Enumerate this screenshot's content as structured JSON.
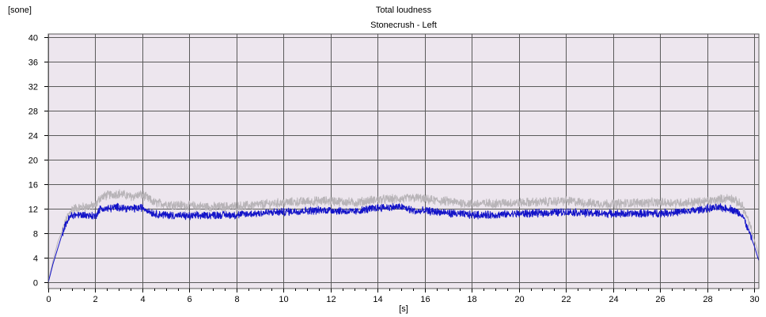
{
  "chart_data": {
    "type": "line",
    "title": "Total loudness",
    "subtitle": "Stonecrush - Left",
    "xlabel": "[s]",
    "ylabel": "[sone]",
    "xlim": [
      0,
      30.2
    ],
    "ylim": [
      -1,
      40.5
    ],
    "xticks": [
      0,
      2,
      4,
      6,
      8,
      10,
      12,
      14,
      16,
      18,
      20,
      22,
      24,
      26,
      28,
      30
    ],
    "yticks": [
      0,
      4,
      8,
      12,
      16,
      20,
      24,
      28,
      32,
      36,
      40
    ],
    "grid": true,
    "legend": "none",
    "colors": {
      "background": "#ede6ee",
      "grid": "#5a5a5a",
      "series_blue": "#1414c8",
      "series_gray": "#b8b4b8"
    },
    "series": [
      {
        "color": "#b8b4b8",
        "x": [
          0,
          0.2,
          0.4,
          0.6,
          0.8,
          1.0,
          1.5,
          2.0,
          2.2,
          2.5,
          3.0,
          3.5,
          4.0,
          4.5,
          5.0,
          6.0,
          7.0,
          8.0,
          9.0,
          10.0,
          11.0,
          12.0,
          13.0,
          14.0,
          15.0,
          15.7,
          16.0,
          17.0,
          18.0,
          19.0,
          20.0,
          21.0,
          22.0,
          23.0,
          24.0,
          25.0,
          26.0,
          27.0,
          28.0,
          28.5,
          29.0,
          29.5,
          29.8,
          30.0,
          30.2
        ],
        "y": [
          0,
          3.5,
          6.5,
          8.5,
          10.5,
          12.0,
          12.3,
          12.5,
          13.8,
          14.2,
          14.5,
          14.0,
          14.3,
          13.0,
          12.8,
          12.5,
          12.3,
          12.4,
          12.7,
          13.0,
          13.2,
          13.3,
          13.0,
          13.5,
          13.6,
          13.8,
          13.5,
          13.2,
          12.8,
          12.9,
          13.0,
          13.1,
          13.3,
          12.9,
          12.8,
          13.0,
          13.0,
          13.0,
          13.2,
          13.5,
          13.8,
          12.5,
          9.5,
          7.0,
          4.5
        ]
      },
      {
        "color": "#1414c8",
        "x": [
          0,
          0.2,
          0.4,
          0.6,
          0.8,
          1.0,
          1.5,
          2.0,
          2.2,
          2.5,
          3.0,
          3.5,
          4.0,
          4.5,
          5.0,
          6.0,
          7.0,
          8.0,
          9.0,
          10.0,
          11.0,
          12.0,
          13.0,
          14.0,
          15.0,
          15.7,
          16.0,
          17.0,
          18.0,
          19.0,
          20.0,
          21.0,
          22.0,
          23.0,
          24.0,
          25.0,
          26.0,
          27.0,
          28.0,
          28.5,
          29.0,
          29.5,
          29.8,
          30.0,
          30.2
        ],
        "y": [
          0,
          3.0,
          5.5,
          8.0,
          10.0,
          11.0,
          11.0,
          10.8,
          12.0,
          12.0,
          12.3,
          12.0,
          12.2,
          11.2,
          11.0,
          10.8,
          11.0,
          11.0,
          11.3,
          11.5,
          11.7,
          11.8,
          11.5,
          12.2,
          12.3,
          11.5,
          11.7,
          11.3,
          11.0,
          11.0,
          11.2,
          11.3,
          11.5,
          11.3,
          11.2,
          11.2,
          11.3,
          11.5,
          12.0,
          12.2,
          12.0,
          11.0,
          8.0,
          6.0,
          3.5
        ]
      }
    ]
  }
}
